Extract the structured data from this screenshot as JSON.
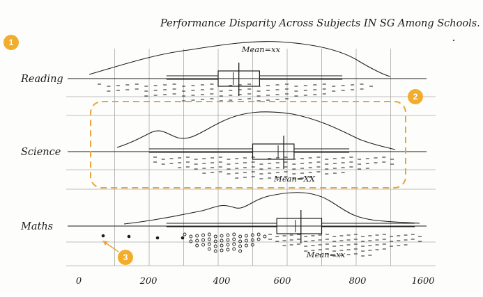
{
  "chart_data": {
    "type": "box",
    "title": "Performance Disparity Across Subjects IN SG Among Schools.",
    "x_ticks": [
      "0",
      "200",
      "400",
      "600",
      "800",
      "1600"
    ],
    "categories": [
      "Reading",
      "Science",
      "Maths"
    ],
    "series": [
      {
        "category": "Reading",
        "whisker_low": 250,
        "q1": 400,
        "median": 460,
        "q3": 520,
        "whisker_high": 760,
        "mean_label": "Mean=xx"
      },
      {
        "category": "Science",
        "whisker_low": 200,
        "q1": 500,
        "median": 590,
        "q3": 620,
        "whisker_high": 780,
        "mean_label": "Mean=XX"
      },
      {
        "category": "Maths",
        "whisker_low": 250,
        "q1": 570,
        "median": 640,
        "q3": 700,
        "whisker_high": 970,
        "mean_label": "Mean=xx"
      }
    ],
    "xlim": [
      0,
      1000
    ],
    "grid": true
  },
  "badges": [
    "1",
    "2",
    "3"
  ],
  "colors": {
    "ink": "#1c1c1c",
    "pencil": "#a8a8a8",
    "highlight": "#e8a53a"
  }
}
